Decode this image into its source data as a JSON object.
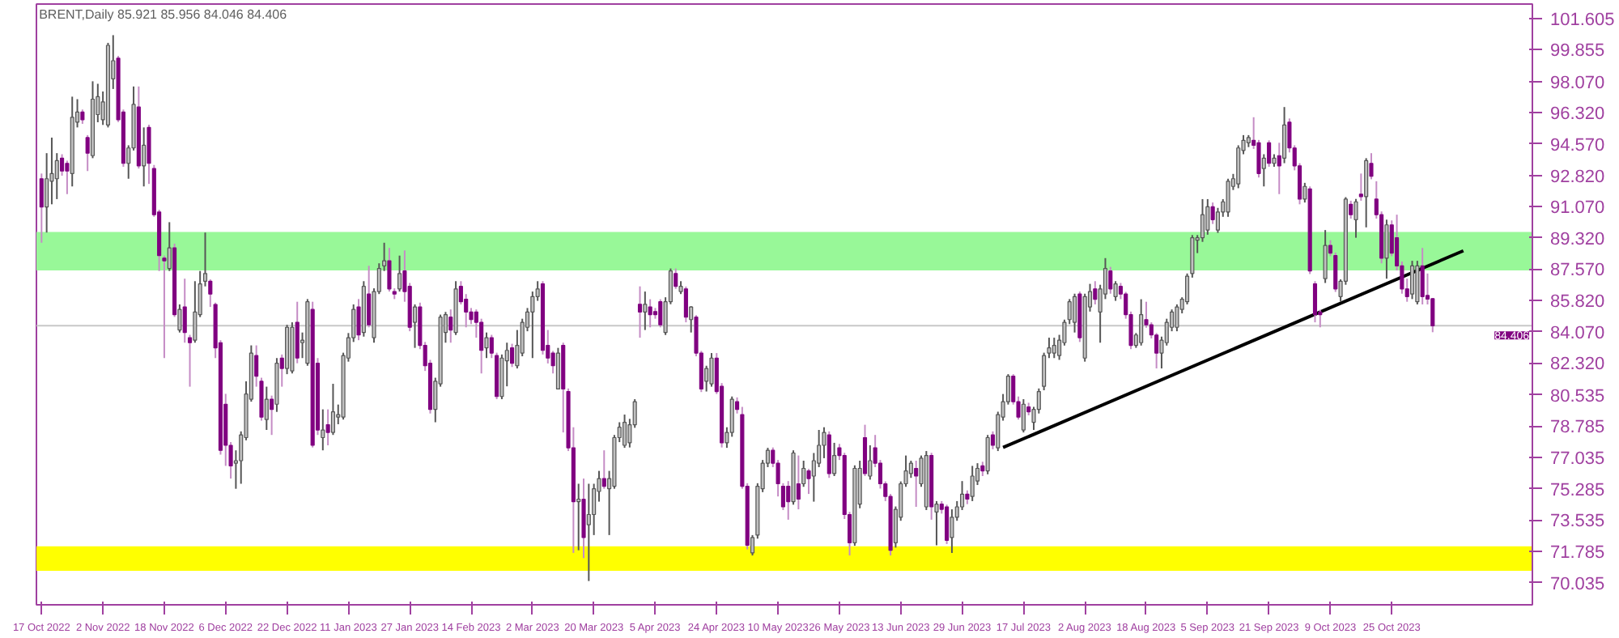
{
  "chart_data": {
    "type": "candlestick",
    "title": "BRENT,Daily  85.921 85.956 84.046 84.406",
    "categories": [
      "17 Oct 2022",
      null,
      null,
      null,
      null,
      null,
      null,
      null,
      null,
      null,
      null,
      null,
      "2 Nov 2022",
      null,
      null,
      null,
      null,
      null,
      null,
      null,
      null,
      null,
      null,
      null,
      "18 Nov 2022",
      null,
      null,
      null,
      null,
      null,
      null,
      null,
      null,
      null,
      null,
      null,
      "6 Dec 2022",
      null,
      null,
      null,
      null,
      null,
      null,
      null,
      null,
      null,
      null,
      null,
      "22 Dec 2022",
      null,
      null,
      null,
      null,
      null,
      null,
      null,
      null,
      null,
      null,
      null,
      "11 Jan 2023",
      null,
      null,
      null,
      null,
      null,
      null,
      null,
      null,
      null,
      null,
      null,
      "27 Jan 2023",
      null,
      null,
      null,
      null,
      null,
      null,
      null,
      null,
      null,
      null,
      null,
      "14 Feb 2023",
      null,
      null,
      null,
      null,
      null,
      null,
      null,
      null,
      null,
      null,
      null,
      "2 Mar 2023",
      null,
      null,
      null,
      null,
      null,
      null,
      null,
      null,
      null,
      null,
      null,
      "20 Mar 2023",
      null,
      null,
      null,
      null,
      null,
      null,
      null,
      null,
      null,
      null,
      null,
      "5 Apr 2023",
      null,
      null,
      null,
      null,
      null,
      null,
      null,
      null,
      null,
      null,
      null,
      "24 Apr 2023",
      null,
      null,
      null,
      null,
      null,
      null,
      null,
      null,
      null,
      null,
      null,
      "10 May 2023",
      null,
      null,
      null,
      null,
      null,
      null,
      null,
      null,
      null,
      null,
      null,
      "26 May 2023",
      null,
      null,
      null,
      null,
      null,
      null,
      null,
      null,
      null,
      null,
      null,
      "13 Jun 2023",
      null,
      null,
      null,
      null,
      null,
      null,
      null,
      null,
      null,
      null,
      null,
      "29 Jun 2023",
      null,
      null,
      null,
      null,
      null,
      null,
      null,
      null,
      null,
      null,
      null,
      "17 Jul 2023",
      null,
      null,
      null,
      null,
      null,
      null,
      null,
      null,
      null,
      null,
      null,
      "2 Aug 2023",
      null,
      null,
      null,
      null,
      null,
      null,
      null,
      null,
      null,
      null,
      null,
      "18 Aug 2023",
      null,
      null,
      null,
      null,
      null,
      null,
      null,
      null,
      null,
      null,
      null,
      "5 Sep 2023",
      null,
      null,
      null,
      null,
      null,
      null,
      null,
      null,
      null,
      null,
      null,
      "21 Sep 2023",
      null,
      null,
      null,
      null,
      null,
      null,
      null,
      null,
      null,
      null,
      null,
      "9 Oct 2023",
      null,
      null,
      null,
      null,
      null,
      null,
      null,
      null,
      null,
      null,
      null,
      "25 Oct 2023",
      null,
      null,
      null,
      null,
      null,
      null,
      null,
      null,
      null,
      null,
      null,
      null,
      null,
      null,
      null,
      null,
      null,
      null,
      null,
      null,
      null,
      null,
      null,
      null,
      null,
      null,
      null
    ],
    "ohlc": [
      [
        92.63,
        92.92,
        89.05,
        91.05
      ],
      [
        91.05,
        94.06,
        89.62,
        92.63
      ],
      [
        92.49,
        94.93,
        91.2,
        92.92
      ],
      [
        92.63,
        94.06,
        91.49,
        93.64
      ],
      [
        93.78,
        94.0,
        92.8,
        93.06
      ],
      [
        93.49,
        93.64,
        91.77,
        93.06
      ],
      [
        92.92,
        97.22,
        92.2,
        96.07
      ],
      [
        95.79,
        97.08,
        95.5,
        96.36
      ],
      [
        96.36,
        96.5,
        95.7,
        95.93
      ],
      [
        94.93,
        95.07,
        93.06,
        94.06
      ],
      [
        93.92,
        98.08,
        93.78,
        97.08
      ],
      [
        96.22,
        97.94,
        95.79,
        97.22
      ],
      [
        95.93,
        97.51,
        95.64,
        96.93
      ],
      [
        95.64,
        100.23,
        95.5,
        100.09
      ],
      [
        98.22,
        100.66,
        97.65,
        99.23
      ],
      [
        99.37,
        99.5,
        95.8,
        95.93
      ],
      [
        96.36,
        96.5,
        93.3,
        93.49
      ],
      [
        93.49,
        94.5,
        92.63,
        94.35
      ],
      [
        94.35,
        97.79,
        94.21,
        96.79
      ],
      [
        96.64,
        97.79,
        93.2,
        93.35
      ],
      [
        93.35,
        95.5,
        92.2,
        94.5
      ],
      [
        95.5,
        95.65,
        92.34,
        93.49
      ],
      [
        93.2,
        93.4,
        90.5,
        90.62
      ],
      [
        90.77,
        90.9,
        87.47,
        88.33
      ],
      [
        88.19,
        88.33,
        82.6,
        88.04
      ],
      [
        87.61,
        90.2,
        87.47,
        88.76
      ],
      [
        88.76,
        89.0,
        84.9,
        85.03
      ],
      [
        84.17,
        85.6,
        84.03,
        85.32
      ],
      [
        85.46,
        87.04,
        83.46,
        84.03
      ],
      [
        83.74,
        83.9,
        81.0,
        83.46
      ],
      [
        83.6,
        86.9,
        83.46,
        85.18
      ],
      [
        85.03,
        87.47,
        84.89,
        86.75
      ],
      [
        86.9,
        89.62,
        86.61,
        87.33
      ],
      [
        86.9,
        87.0,
        85.46,
        86.18
      ],
      [
        85.6,
        85.7,
        82.6,
        83.17
      ],
      [
        83.46,
        83.6,
        77.2,
        77.44
      ],
      [
        80.02,
        80.6,
        76.57,
        77.72
      ],
      [
        77.72,
        77.9,
        75.86,
        76.57
      ],
      [
        76.72,
        77.44,
        75.29,
        76.86
      ],
      [
        76.86,
        78.5,
        75.57,
        78.3
      ],
      [
        78.15,
        81.3,
        78.0,
        80.59
      ],
      [
        80.3,
        83.31,
        80.16,
        82.88
      ],
      [
        82.74,
        83.31,
        81.0,
        81.59
      ],
      [
        81.3,
        81.5,
        79.1,
        79.3
      ],
      [
        79.16,
        81.0,
        78.58,
        80.3
      ],
      [
        80.3,
        80.5,
        78.3,
        79.73
      ],
      [
        80.02,
        82.6,
        79.59,
        82.31
      ],
      [
        82.6,
        82.8,
        81.0,
        82.02
      ],
      [
        82.02,
        84.46,
        81.7,
        84.32
      ],
      [
        81.88,
        84.6,
        81.74,
        84.32
      ],
      [
        84.6,
        85.75,
        82.31,
        82.6
      ],
      [
        83.46,
        84.03,
        82.6,
        83.6
      ],
      [
        82.31,
        85.9,
        82.17,
        85.75
      ],
      [
        85.32,
        85.75,
        77.6,
        77.72
      ],
      [
        82.31,
        82.6,
        78.3,
        78.58
      ],
      [
        78.15,
        79.73,
        77.44,
        78.58
      ],
      [
        78.87,
        79.73,
        77.72,
        78.44
      ],
      [
        78.44,
        81.16,
        78.3,
        79.59
      ],
      [
        79.3,
        80.0,
        78.9,
        79.44
      ],
      [
        79.3,
        82.9,
        79.16,
        82.74
      ],
      [
        82.6,
        84.0,
        82.4,
        83.74
      ],
      [
        83.74,
        85.6,
        83.5,
        85.32
      ],
      [
        85.46,
        85.9,
        83.6,
        83.89
      ],
      [
        84.03,
        86.9,
        83.8,
        86.61
      ],
      [
        86.18,
        87.76,
        84.32,
        84.46
      ],
      [
        83.74,
        86.5,
        83.46,
        86.32
      ],
      [
        86.32,
        87.9,
        86.18,
        87.61
      ],
      [
        87.76,
        89.05,
        87.47,
        88.04
      ],
      [
        88.04,
        88.76,
        86.32,
        86.47
      ],
      [
        86.32,
        86.5,
        85.9,
        86.18
      ],
      [
        86.47,
        88.33,
        86.32,
        87.33
      ],
      [
        87.47,
        88.62,
        85.75,
        86.32
      ],
      [
        86.61,
        86.8,
        84.1,
        84.32
      ],
      [
        84.6,
        85.6,
        83.17,
        85.46
      ],
      [
        85.46,
        85.7,
        83.1,
        83.31
      ],
      [
        83.31,
        83.5,
        81.88,
        82.17
      ],
      [
        82.31,
        82.5,
        79.5,
        79.73
      ],
      [
        79.73,
        81.5,
        79.01,
        81.3
      ],
      [
        81.16,
        85.03,
        81.0,
        84.89
      ],
      [
        84.03,
        85.18,
        83.46,
        85.03
      ],
      [
        84.89,
        85.32,
        83.46,
        84.17
      ],
      [
        84.03,
        86.9,
        83.89,
        86.47
      ],
      [
        86.61,
        86.9,
        85.6,
        85.75
      ],
      [
        85.89,
        86.18,
        84.32,
        85.18
      ],
      [
        85.18,
        85.4,
        84.5,
        84.75
      ],
      [
        85.18,
        85.32,
        83.74,
        84.6
      ],
      [
        84.6,
        84.8,
        81.74,
        83.03
      ],
      [
        83.17,
        84.03,
        82.6,
        83.74
      ],
      [
        83.74,
        83.9,
        82.6,
        82.88
      ],
      [
        82.74,
        82.9,
        80.3,
        80.45
      ],
      [
        80.45,
        82.8,
        80.3,
        82.6
      ],
      [
        82.45,
        83.46,
        81.02,
        83.03
      ],
      [
        83.17,
        83.4,
        82.1,
        82.31
      ],
      [
        82.17,
        84.17,
        82.02,
        83.31
      ],
      [
        82.88,
        84.8,
        82.7,
        84.6
      ],
      [
        84.32,
        85.4,
        84.1,
        85.18
      ],
      [
        85.18,
        86.32,
        82.6,
        86.04
      ],
      [
        86.04,
        86.9,
        85.8,
        86.47
      ],
      [
        86.75,
        86.9,
        82.8,
        83.03
      ],
      [
        83.31,
        84.17,
        82.3,
        82.6
      ],
      [
        82.88,
        83.0,
        81.74,
        82.17
      ],
      [
        80.87,
        83.17,
        80.87,
        82.88
      ],
      [
        83.31,
        83.46,
        78.44,
        80.87
      ],
      [
        80.73,
        80.9,
        77.4,
        77.58
      ],
      [
        77.58,
        78.73,
        71.7,
        74.57
      ],
      [
        74.57,
        75.57,
        71.85,
        74.71
      ],
      [
        74.71,
        75.86,
        71.41,
        72.56
      ],
      [
        73.28,
        75.57,
        70.13,
        73.85
      ],
      [
        73.85,
        75.57,
        72.7,
        75.29
      ],
      [
        75.14,
        76.29,
        74.57,
        75.86
      ],
      [
        75.86,
        77.44,
        75.29,
        75.43
      ],
      [
        75.29,
        76.29,
        72.7,
        75.86
      ],
      [
        75.43,
        78.3,
        75.29,
        78.15
      ],
      [
        78.15,
        79.01,
        77.9,
        78.73
      ],
      [
        77.72,
        79.44,
        77.58,
        79.01
      ],
      [
        77.86,
        79.2,
        77.6,
        78.87
      ],
      [
        78.87,
        80.3,
        78.7,
        80.16
      ],
      [
        85.61,
        86.61,
        83.74,
        85.18
      ],
      [
        85.18,
        86.32,
        84.17,
        85.61
      ],
      [
        85.46,
        85.89,
        84.32,
        85.03
      ],
      [
        85.2,
        85.4,
        84.8,
        85.03
      ],
      [
        85.75,
        85.89,
        84.32,
        84.46
      ],
      [
        84.03,
        86.0,
        83.89,
        85.75
      ],
      [
        85.75,
        87.61,
        85.61,
        87.47
      ],
      [
        87.33,
        87.61,
        86.47,
        86.61
      ],
      [
        86.32,
        86.9,
        86.18,
        86.61
      ],
      [
        86.47,
        86.6,
        84.6,
        84.89
      ],
      [
        84.75,
        85.5,
        84.03,
        85.46
      ],
      [
        84.89,
        85.0,
        82.7,
        82.88
      ],
      [
        82.88,
        83.0,
        80.7,
        80.87
      ],
      [
        81.3,
        82.17,
        80.73,
        82.02
      ],
      [
        81.16,
        82.88,
        81.0,
        82.6
      ],
      [
        82.6,
        82.88,
        80.59,
        80.73
      ],
      [
        81.02,
        81.2,
        77.6,
        77.86
      ],
      [
        77.86,
        78.73,
        77.58,
        78.44
      ],
      [
        78.44,
        80.45,
        78.2,
        80.3
      ],
      [
        80.16,
        80.4,
        79.5,
        79.73
      ],
      [
        79.44,
        79.87,
        75.29,
        75.43
      ],
      [
        75.43,
        75.6,
        71.9,
        72.13
      ],
      [
        71.7,
        72.7,
        71.56,
        72.56
      ],
      [
        72.7,
        75.6,
        72.5,
        75.43
      ],
      [
        75.29,
        76.9,
        75.1,
        76.72
      ],
      [
        76.72,
        77.58,
        76.5,
        77.44
      ],
      [
        77.44,
        77.6,
        76.5,
        76.72
      ],
      [
        76.72,
        76.9,
        74.86,
        75.57
      ],
      [
        75.43,
        75.6,
        74.1,
        74.28
      ],
      [
        75.43,
        75.72,
        73.56,
        74.57
      ],
      [
        74.57,
        77.44,
        74.4,
        77.29
      ],
      [
        75.57,
        77.15,
        74.14,
        74.71
      ],
      [
        75.57,
        76.86,
        75.4,
        76.43
      ],
      [
        76.29,
        76.4,
        75.0,
        75.86
      ],
      [
        76.0,
        77.29,
        74.57,
        76.86
      ],
      [
        76.72,
        78.58,
        76.5,
        77.72
      ],
      [
        77.72,
        78.73,
        77.0,
        78.44
      ],
      [
        78.3,
        78.5,
        75.9,
        76.14
      ],
      [
        76.14,
        77.86,
        76.0,
        77.15
      ],
      [
        77.58,
        77.8,
        76.9,
        77.15
      ],
      [
        77.15,
        77.3,
        73.6,
        73.85
      ],
      [
        73.85,
        74.0,
        71.56,
        72.27
      ],
      [
        72.27,
        76.6,
        72.1,
        76.43
      ],
      [
        74.43,
        76.86,
        74.2,
        76.43
      ],
      [
        78.15,
        78.87,
        76.0,
        76.14
      ],
      [
        76.0,
        77.72,
        75.8,
        76.86
      ],
      [
        77.58,
        78.3,
        76.5,
        76.72
      ],
      [
        76.72,
        76.9,
        75.3,
        75.57
      ],
      [
        75.57,
        75.7,
        74.6,
        74.86
      ],
      [
        74.86,
        75.0,
        71.56,
        71.85
      ],
      [
        72.27,
        74.3,
        72.0,
        74.14
      ],
      [
        73.7,
        75.7,
        73.5,
        75.57
      ],
      [
        75.57,
        77.15,
        75.4,
        76.29
      ],
      [
        76.14,
        76.86,
        75.9,
        76.72
      ],
      [
        76.43,
        76.86,
        74.28,
        76.0
      ],
      [
        75.57,
        77.15,
        75.4,
        77.0
      ],
      [
        74.28,
        77.4,
        74.1,
        77.15
      ],
      [
        77.15,
        77.3,
        73.56,
        74.28
      ],
      [
        73.99,
        74.6,
        72.13,
        74.43
      ],
      [
        74.43,
        74.6,
        73.9,
        74.14
      ],
      [
        74.28,
        74.4,
        72.2,
        72.41
      ],
      [
        72.56,
        74.14,
        71.7,
        73.7
      ],
      [
        73.7,
        74.6,
        73.5,
        74.28
      ],
      [
        74.28,
        75.72,
        74.1,
        74.99
      ],
      [
        74.99,
        75.2,
        74.43,
        74.71
      ],
      [
        74.86,
        76.57,
        74.6,
        76.0
      ],
      [
        75.72,
        76.72,
        75.5,
        76.43
      ],
      [
        76.57,
        76.8,
        76.0,
        76.29
      ],
      [
        76.29,
        78.3,
        76.1,
        78.15
      ],
      [
        78.3,
        78.5,
        77.5,
        77.72
      ],
      [
        77.58,
        79.6,
        77.4,
        79.44
      ],
      [
        79.3,
        80.59,
        79.1,
        80.16
      ],
      [
        80.16,
        81.7,
        80.0,
        81.59
      ],
      [
        81.59,
        81.7,
        80.0,
        80.16
      ],
      [
        80.16,
        80.45,
        79.16,
        79.3
      ],
      [
        78.58,
        80.3,
        78.44,
        80.02
      ],
      [
        79.87,
        80.1,
        79.4,
        79.59
      ],
      [
        79.01,
        79.87,
        78.58,
        79.73
      ],
      [
        79.73,
        80.9,
        79.5,
        80.73
      ],
      [
        81.02,
        82.9,
        80.8,
        82.74
      ],
      [
        82.88,
        83.74,
        82.6,
        83.17
      ],
      [
        82.88,
        83.74,
        82.6,
        83.31
      ],
      [
        82.74,
        83.9,
        82.5,
        83.6
      ],
      [
        83.46,
        84.75,
        83.3,
        84.6
      ],
      [
        84.75,
        85.9,
        84.5,
        85.75
      ],
      [
        84.6,
        86.2,
        84.03,
        86.04
      ],
      [
        86.18,
        86.32,
        83.5,
        83.74
      ],
      [
        82.6,
        86.2,
        82.4,
        86.04
      ],
      [
        85.46,
        86.75,
        85.2,
        86.32
      ],
      [
        86.47,
        86.9,
        85.6,
        85.89
      ],
      [
        85.18,
        86.7,
        83.46,
        86.47
      ],
      [
        86.18,
        88.19,
        85.9,
        87.61
      ],
      [
        87.47,
        87.7,
        86.2,
        86.47
      ],
      [
        86.04,
        86.9,
        85.8,
        86.75
      ],
      [
        86.61,
        86.8,
        85.9,
        86.18
      ],
      [
        86.18,
        86.3,
        84.8,
        85.03
      ],
      [
        85.03,
        85.2,
        83.1,
        83.31
      ],
      [
        83.31,
        84.0,
        83.17,
        83.89
      ],
      [
        83.46,
        85.89,
        83.3,
        85.03
      ],
      [
        84.75,
        85.75,
        84.3,
        84.46
      ],
      [
        84.46,
        84.6,
        83.7,
        83.89
      ],
      [
        83.89,
        84.0,
        82.02,
        82.88
      ],
      [
        82.88,
        83.8,
        82.02,
        83.6
      ],
      [
        83.46,
        84.8,
        83.3,
        84.6
      ],
      [
        84.32,
        85.32,
        84.1,
        85.18
      ],
      [
        84.32,
        85.6,
        84.1,
        85.46
      ],
      [
        85.32,
        86.0,
        85.1,
        85.89
      ],
      [
        85.75,
        87.33,
        85.6,
        87.18
      ],
      [
        87.33,
        89.48,
        87.1,
        89.33
      ],
      [
        89.19,
        89.48,
        88.47,
        89.33
      ],
      [
        89.33,
        91.49,
        89.1,
        90.62
      ],
      [
        89.76,
        91.49,
        89.5,
        91.06
      ],
      [
        91.06,
        91.3,
        90.1,
        90.34
      ],
      [
        89.76,
        91.0,
        89.6,
        90.77
      ],
      [
        90.77,
        91.49,
        90.5,
        91.34
      ],
      [
        90.77,
        92.63,
        90.5,
        92.49
      ],
      [
        92.2,
        92.9,
        92.0,
        92.63
      ],
      [
        92.34,
        94.5,
        92.1,
        94.35
      ],
      [
        94.21,
        95.07,
        94.0,
        94.78
      ],
      [
        94.64,
        95.07,
        94.4,
        94.93
      ],
      [
        94.78,
        96.07,
        94.3,
        94.5
      ],
      [
        94.64,
        94.8,
        92.7,
        92.92
      ],
      [
        93.2,
        94.0,
        92.2,
        93.78
      ],
      [
        94.64,
        94.78,
        93.3,
        93.49
      ],
      [
        93.49,
        94.0,
        93.3,
        93.78
      ],
      [
        93.92,
        94.64,
        91.77,
        93.35
      ],
      [
        93.78,
        96.64,
        93.5,
        95.64
      ],
      [
        95.79,
        96.0,
        94.1,
        94.35
      ],
      [
        94.35,
        94.5,
        93.1,
        93.35
      ],
      [
        93.35,
        93.5,
        91.2,
        91.49
      ],
      [
        91.49,
        92.4,
        91.3,
        92.2
      ],
      [
        92.06,
        92.2,
        87.3,
        87.47
      ],
      [
        86.75,
        86.9,
        84.6,
        85.03
      ],
      [
        85.18,
        85.3,
        84.32,
        85.03
      ],
      [
        87.04,
        89.76,
        86.8,
        88.9
      ],
      [
        88.9,
        89.19,
        88.3,
        88.47
      ],
      [
        88.33,
        88.5,
        86.3,
        86.47
      ],
      [
        86.04,
        87.0,
        85.75,
        86.9
      ],
      [
        86.9,
        91.6,
        86.7,
        91.49
      ],
      [
        91.2,
        91.4,
        90.4,
        90.62
      ],
      [
        90.34,
        91.5,
        89.33,
        91.34
      ],
      [
        91.77,
        92.92,
        91.4,
        91.63
      ],
      [
        91.63,
        93.78,
        89.91,
        93.64
      ],
      [
        93.49,
        94.06,
        92.6,
        92.77
      ],
      [
        91.49,
        92.49,
        90.4,
        90.62
      ],
      [
        90.62,
        90.8,
        87.9,
        88.19
      ],
      [
        88.19,
        90.34,
        87.04,
        90.05
      ],
      [
        90.05,
        90.3,
        88.3,
        88.47
      ],
      [
        89.33,
        90.62,
        87.5,
        87.76
      ],
      [
        87.76,
        88.0,
        86.2,
        86.47
      ],
      [
        86.47,
        87.04,
        85.75,
        86.04
      ],
      [
        86.18,
        88.04,
        85.9,
        87.76
      ],
      [
        85.75,
        88.04,
        85.6,
        87.76
      ],
      [
        87.76,
        88.76,
        85.6,
        86.04
      ],
      [
        86.1,
        87.33,
        85.6,
        85.9
      ],
      [
        85.921,
        85.956,
        84.046,
        84.406
      ],
      null,
      null,
      null,
      null,
      null,
      null,
      null,
      null,
      null,
      null,
      null,
      null,
      null,
      null,
      null,
      null,
      null,
      null,
      null
    ],
    "colors": [
      "#800080",
      "#c0c0c0",
      "#c0c0c0",
      "#c0c0c0",
      "#800080",
      "#800080",
      "#c0c0c0",
      "#c0c0c0",
      "#800080",
      "#800080",
      "#c0c0c0",
      "#c0c0c0",
      "#c0c0c0",
      "#c0c0c0",
      "#c0c0c0",
      "#800080",
      "#800080",
      "#c0c0c0",
      "#c0c0c0",
      "#800080",
      "#c0c0c0",
      "#800080",
      "#800080",
      "#800080",
      "#800080",
      "#c0c0c0",
      "#800080",
      "#c0c0c0",
      "#800080",
      "#800080",
      "#c0c0c0",
      "#c0c0c0",
      "#c0c0c0",
      "#800080",
      "#800080",
      "#800080",
      "#800080",
      "#800080",
      "#c0c0c0",
      "#c0c0c0",
      "#c0c0c0",
      "#c0c0c0",
      "#800080",
      "#800080",
      "#c0c0c0",
      "#800080",
      "#c0c0c0",
      "#800080",
      "#c0c0c0",
      "#c0c0c0",
      "#800080",
      "#c0c0c0",
      "#c0c0c0",
      "#800080",
      "#800080",
      "#c0c0c0",
      "#800080",
      "#c0c0c0",
      "#c0c0c0",
      "#c0c0c0",
      "#c0c0c0",
      "#c0c0c0",
      "#800080",
      "#c0c0c0",
      "#800080",
      "#c0c0c0",
      "#c0c0c0",
      "#c0c0c0",
      "#800080",
      "#800080",
      "#c0c0c0",
      "#800080",
      "#800080",
      "#c0c0c0",
      "#800080",
      "#800080",
      "#800080",
      "#c0c0c0",
      "#c0c0c0",
      "#c0c0c0",
      "#800080",
      "#c0c0c0",
      "#800080",
      "#800080",
      "#800080",
      "#800080",
      "#800080",
      "#c0c0c0",
      "#800080",
      "#800080",
      "#c0c0c0",
      "#c0c0c0",
      "#800080",
      "#c0c0c0",
      "#c0c0c0",
      "#c0c0c0",
      "#c0c0c0",
      "#c0c0c0",
      "#800080",
      "#800080",
      "#800080",
      "#c0c0c0",
      "#800080",
      "#800080",
      "#800080",
      "#c0c0c0",
      "#800080",
      "#c0c0c0",
      "#c0c0c0",
      "#c0c0c0",
      "#800080",
      "#c0c0c0",
      "#c0c0c0",
      "#c0c0c0",
      "#c0c0c0",
      "#c0c0c0",
      "#c0c0c0",
      "#800080",
      "#c0c0c0",
      "#800080",
      "#800080",
      "#800080",
      "#c0c0c0",
      "#c0c0c0",
      "#800080",
      "#c0c0c0",
      "#800080",
      "#c0c0c0",
      "#800080",
      "#800080",
      "#c0c0c0",
      "#c0c0c0",
      "#800080",
      "#800080",
      "#c0c0c0",
      "#c0c0c0",
      "#800080",
      "#800080",
      "#800080",
      "#c0c0c0",
      "#c0c0c0",
      "#c0c0c0",
      "#c0c0c0",
      "#800080",
      "#800080",
      "#800080",
      "#800080",
      "#c0c0c0",
      "#800080",
      "#c0c0c0",
      "#800080",
      "#c0c0c0",
      "#c0c0c0",
      "#c0c0c0",
      "#800080",
      "#c0c0c0",
      "#800080",
      "#800080",
      "#800080",
      "#c0c0c0",
      "#c0c0c0",
      "#800080",
      "#c0c0c0",
      "#800080",
      "#800080",
      "#800080",
      "#800080",
      "#c0c0c0",
      "#c0c0c0",
      "#c0c0c0",
      "#c0c0c0",
      "#800080",
      "#c0c0c0",
      "#c0c0c0",
      "#800080",
      "#c0c0c0",
      "#800080",
      "#800080",
      "#c0c0c0",
      "#c0c0c0",
      "#c0c0c0",
      "#800080",
      "#c0c0c0",
      "#c0c0c0",
      "#800080",
      "#c0c0c0",
      "#800080",
      "#c0c0c0",
      "#c0c0c0",
      "#c0c0c0",
      "#800080",
      "#800080",
      "#c0c0c0",
      "#800080",
      "#c0c0c0",
      "#c0c0c0",
      "#c0c0c0",
      "#c0c0c0",
      "#c0c0c0",
      "#c0c0c0",
      "#c0c0c0",
      "#c0c0c0",
      "#c0c0c0",
      "#800080",
      "#c0c0c0",
      "#c0c0c0",
      "#800080",
      "#c0c0c0",
      "#c0c0c0",
      "#800080",
      "#c0c0c0",
      "#800080",
      "#800080",
      "#800080",
      "#c0c0c0",
      "#c0c0c0",
      "#800080",
      "#800080",
      "#800080",
      "#c0c0c0",
      "#c0c0c0",
      "#c0c0c0",
      "#c0c0c0",
      "#c0c0c0",
      "#c0c0c0",
      "#c0c0c0",
      "#c0c0c0",
      "#c0c0c0",
      "#c0c0c0",
      "#800080",
      "#c0c0c0",
      "#c0c0c0",
      "#c0c0c0",
      "#c0c0c0",
      "#c0c0c0",
      "#c0c0c0",
      "#c0c0c0",
      "#800080",
      "#800080",
      "#c0c0c0",
      "#800080",
      "#c0c0c0",
      "#800080",
      "#c0c0c0",
      "#800080",
      "#800080",
      "#800080",
      "#c0c0c0",
      "#800080",
      "#800080",
      "#800080",
      "#c0c0c0",
      "#800080",
      "#800080",
      "#c0c0c0",
      "#c0c0c0",
      "#800080",
      "#c0c0c0",
      "#800080",
      "#c0c0c0",
      "#800080",
      "#800080",
      "#800080",
      "#c0c0c0",
      "#800080",
      "#800080",
      "#800080",
      "#800080",
      "#c0c0c0",
      "#c0c0c0",
      "#800080",
      "#800080",
      "#800080",
      null,
      null,
      null,
      null,
      null,
      null,
      null,
      null,
      null,
      null,
      null,
      null,
      null,
      null,
      null,
      null,
      null,
      null,
      null
    ],
    "series": [
      {
        "type": "line",
        "values": [
          null,
          null,
          null,
          null,
          null,
          null,
          null,
          null,
          null,
          null,
          null,
          null,
          null,
          null,
          null,
          null,
          null,
          null,
          null,
          null,
          null,
          null,
          null,
          null,
          null,
          null,
          null,
          null,
          null,
          null,
          null,
          null,
          null,
          null,
          null,
          null,
          null,
          null,
          null,
          null,
          null,
          null,
          null,
          null,
          null,
          null,
          null,
          null,
          null,
          null,
          null,
          null,
          null,
          null,
          null,
          null,
          null,
          null,
          null,
          null,
          null,
          null,
          null,
          null,
          null,
          null,
          null,
          null,
          null,
          null,
          null,
          null,
          null,
          null,
          null,
          null,
          null,
          null,
          null,
          null,
          null,
          null,
          null,
          null,
          null,
          null,
          null,
          null,
          null,
          null,
          null,
          null,
          null,
          null,
          null,
          null,
          null,
          null,
          null,
          null,
          null,
          null,
          null,
          null,
          null,
          null,
          null,
          null,
          null,
          null,
          null,
          null,
          null,
          null,
          null,
          null,
          null,
          null,
          null,
          null,
          null,
          null,
          null,
          null,
          null,
          null,
          null,
          null,
          null,
          null,
          null,
          null,
          null,
          null,
          null,
          null,
          null,
          null,
          null,
          null,
          null,
          null,
          null,
          null,
          null,
          null,
          null,
          null,
          null,
          null,
          null,
          null,
          null,
          null,
          null,
          null,
          null,
          null,
          null,
          null,
          null,
          null,
          null,
          null,
          null,
          null,
          null,
          null,
          null,
          null,
          null,
          null,
          null,
          null,
          null,
          null,
          null,
          null,
          null,
          null,
          null,
          null,
          null,
          null,
          null,
          null,
          null,
          null,
          77.6,
          null,
          null,
          null,
          null,
          null,
          null,
          null,
          null,
          null,
          null,
          null,
          null,
          null,
          null,
          null,
          null,
          null,
          null,
          null,
          null,
          null,
          null,
          null,
          null,
          null,
          null,
          null,
          null,
          null,
          null,
          null,
          null,
          null,
          null,
          null,
          null,
          null,
          null,
          null,
          null,
          null,
          null,
          null,
          null,
          null,
          null,
          null,
          null,
          null,
          null,
          null,
          null,
          null,
          null,
          null,
          null,
          null,
          null,
          null,
          null,
          null,
          null,
          null,
          null,
          null,
          null,
          null,
          null,
          null,
          null,
          null,
          null,
          null,
          null,
          null,
          null,
          null,
          null,
          null,
          null,
          null,
          null,
          null,
          null,
          null,
          null,
          null,
          null,
          null,
          88.6,
          null,
          null,
          null,
          null,
          null,
          null,
          null,
          null,
          null,
          null,
          null,
          null,
          null
        ],
        "color": "#000000"
      }
    ],
    "ylim": [
      68.8,
      102.4
    ],
    "yticks": [
      {
        "value": 70.035,
        "label": "70.035"
      },
      {
        "value": 71.785,
        "label": "71.785"
      },
      {
        "value": 73.535,
        "label": "73.535"
      },
      {
        "value": 75.285,
        "label": "75.285"
      },
      {
        "value": 77.035,
        "label": "77.035"
      },
      {
        "value": 78.785,
        "label": "78.785"
      },
      {
        "value": 80.535,
        "label": "80.535"
      },
      {
        "value": 82.32,
        "label": "82.320"
      },
      {
        "value": 84.07,
        "label": "84.070"
      },
      {
        "value": 85.82,
        "label": "85.820"
      },
      {
        "value": 87.57,
        "label": "87.570"
      },
      {
        "value": 89.32,
        "label": "89.320"
      },
      {
        "value": 91.07,
        "label": "91.070"
      },
      {
        "value": 92.82,
        "label": "92.820"
      },
      {
        "value": 94.57,
        "label": "94.570"
      },
      {
        "value": 96.32,
        "label": "96.320"
      },
      {
        "value": 98.07,
        "label": "98.070"
      },
      {
        "value": 99.855,
        "label": "99.855"
      },
      {
        "value": 101.605,
        "label": "101.605"
      }
    ],
    "bands": [
      {
        "axis": "y",
        "from": 87.5,
        "to": 89.65,
        "color": "#98f898"
      },
      {
        "axis": "y",
        "from": 70.7,
        "to": 72.07,
        "color": "#ffff00"
      }
    ],
    "ref_lines": [
      {
        "axis": "y",
        "value": 84.406,
        "label": "84.406",
        "color": "#c8c8c8",
        "line_style": "solid"
      }
    ]
  }
}
